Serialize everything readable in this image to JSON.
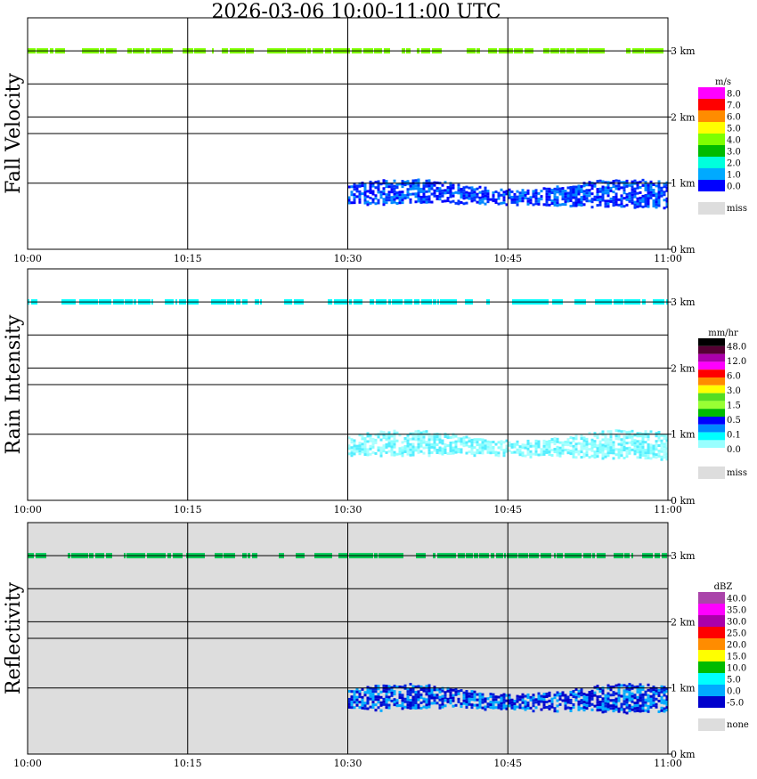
{
  "title": "2026-03-06  10:00-11:00 UTC",
  "x_ticks": [
    "10:00",
    "10:15",
    "10:30",
    "10:45",
    "11:00"
  ],
  "y_ticks": [
    "0 km",
    "1 km",
    "2 km",
    "3 km"
  ],
  "colors": {
    "grid": "#000000",
    "missing_bg": "#dddddd"
  },
  "chart_data": [
    {
      "type": "heatmap",
      "title": "Fall Velocity",
      "ylabel": "Fall Velocity",
      "x_range": [
        "10:00",
        "11:00"
      ],
      "y_range_km": [
        0,
        3.5
      ],
      "background": "#ffffff",
      "legend": {
        "units": "m/s",
        "labels": [
          "8.0",
          "7.0",
          "6.0",
          "5.0",
          "4.0",
          "3.0",
          "2.0",
          "1.0",
          "0.0",
          "miss"
        ],
        "colors": [
          "#ff00ff",
          "#ff0000",
          "#ff8c00",
          "#ffff00",
          "#7fff00",
          "#00bb00",
          "#00ffdd",
          "#00aaff",
          "#0000ff",
          "#dddddd"
        ]
      },
      "features": [
        {
          "kind": "band",
          "start": "10:00",
          "end": "11:00",
          "alt_km": 3.0,
          "color": "#7fff00"
        },
        {
          "kind": "precip",
          "start": "10:30",
          "end": "11:00",
          "alt_km": [
            0.7,
            1.0
          ],
          "colors": [
            "#0000ff",
            "#0033ff",
            "#0088ff"
          ]
        }
      ]
    },
    {
      "type": "heatmap",
      "title": "Rain Intensity",
      "ylabel": "Rain Intensity",
      "x_range": [
        "10:00",
        "11:00"
      ],
      "y_range_km": [
        0,
        3.5
      ],
      "background": "#ffffff",
      "legend": {
        "units": "mm/hr",
        "labels": [
          "48.0",
          "12.0",
          "6.0",
          "3.0",
          "1.5",
          "0.5",
          "0.1",
          "0.0",
          "miss"
        ],
        "colors": [
          "#000000",
          "#550033",
          "#aa00aa",
          "#ff00ff",
          "#ff0000",
          "#ff8c00",
          "#ffff00",
          "#55dd22",
          "#99ff33",
          "#00bb00",
          "#0000ff",
          "#0088ff",
          "#00ffff",
          "#99ffff",
          "#ffffff",
          "#dddddd"
        ]
      },
      "features": [
        {
          "kind": "band",
          "start": "10:00",
          "end": "11:00",
          "alt_km": 3.0,
          "color": "#00ffff"
        },
        {
          "kind": "precip",
          "start": "10:30",
          "end": "11:00",
          "alt_km": [
            0.7,
            1.0
          ],
          "colors": [
            "#88ffff",
            "#aaffff",
            "#55eeff"
          ]
        }
      ]
    },
    {
      "type": "heatmap",
      "title": "Reflectivity",
      "ylabel": "Reflectivity",
      "x_range": [
        "10:00",
        "11:00"
      ],
      "y_range_km": [
        0,
        3.5
      ],
      "background": "#dddddd",
      "legend": {
        "units": "dBZ",
        "labels": [
          "40.0",
          "35.0",
          "30.0",
          "25.0",
          "20.0",
          "15.0",
          "10.0",
          "5.0",
          "0.0",
          "-5.0",
          "none"
        ],
        "colors": [
          "#aa44aa",
          "#ff00ff",
          "#aa00aa",
          "#ff0000",
          "#ff8c00",
          "#ffff00",
          "#00bb00",
          "#00ffff",
          "#00aaff",
          "#0000cc",
          "#dddddd"
        ]
      },
      "features": [
        {
          "kind": "band",
          "start": "10:00",
          "end": "11:00",
          "alt_km": 3.0,
          "color": "#00cc55"
        },
        {
          "kind": "precip",
          "start": "10:30",
          "end": "11:00",
          "alt_km": [
            0.7,
            1.0
          ],
          "colors": [
            "#0000cc",
            "#0022dd",
            "#00aaff"
          ]
        }
      ]
    }
  ]
}
